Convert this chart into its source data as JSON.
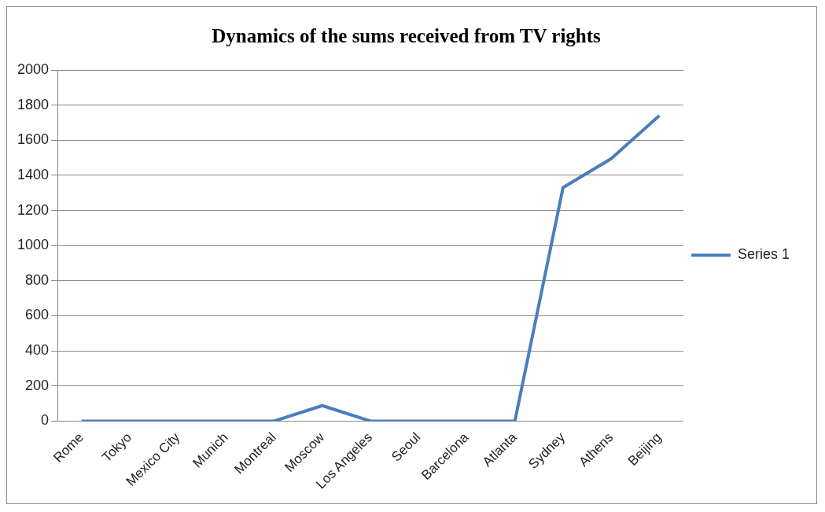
{
  "chart_data": {
    "type": "line",
    "title": "Dynamics of the sums received from TV rights",
    "categories": [
      "Rome",
      "Tokyo",
      "Mexico City",
      "Munich",
      "Montreal",
      "Moscow",
      "Los Angeles",
      "Seoul",
      "Barcelona",
      "Atlanta",
      "Sydney",
      "Athens",
      "Beijing"
    ],
    "series": [
      {
        "name": "Series 1",
        "color": "#4a7ebb",
        "values": [
          0,
          0,
          0,
          0,
          0,
          88,
          0,
          0,
          0,
          0,
          1330,
          1495,
          1740
        ]
      }
    ],
    "ylim": [
      0,
      2000
    ],
    "yticks": [
      0,
      200,
      400,
      600,
      800,
      1000,
      1200,
      1400,
      1600,
      1800,
      2000
    ],
    "grid": "y",
    "legend": "right",
    "marker": "none",
    "line_style": "solid"
  }
}
